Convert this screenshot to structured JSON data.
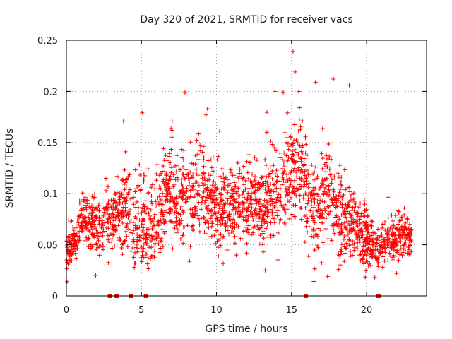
{
  "chart_data": {
    "type": "scatter",
    "title": "Day 320 of 2021, SRMTID for receiver vacs",
    "xlabel": "GPS time / hours",
    "ylabel": "SRMTID / TECUs",
    "xlim": [
      0,
      24
    ],
    "ylim": [
      0,
      0.25
    ],
    "x_ticks": [
      0,
      5,
      10,
      15,
      20
    ],
    "x_tick_labels": [
      "0",
      "5",
      "10",
      "15",
      "20"
    ],
    "y_ticks": [
      0,
      0.05,
      0.1,
      0.15,
      0.2,
      0.25
    ],
    "y_tick_labels": [
      "0",
      "0.05",
      "0.1",
      "0.15",
      "0.2",
      "0.25"
    ],
    "grid": true,
    "marker": "+",
    "color": "#ff0000",
    "baseline_markers_x": [
      2.9,
      3.35,
      4.3,
      5.3,
      15.95,
      20.8
    ],
    "trend": [
      {
        "x": 0.0,
        "y": 0.045
      },
      {
        "x": 0.5,
        "y": 0.05
      },
      {
        "x": 1.0,
        "y": 0.075
      },
      {
        "x": 1.5,
        "y": 0.075
      },
      {
        "x": 2.0,
        "y": 0.065
      },
      {
        "x": 2.5,
        "y": 0.07
      },
      {
        "x": 3.0,
        "y": 0.075
      },
      {
        "x": 3.5,
        "y": 0.085
      },
      {
        "x": 4.0,
        "y": 0.09
      },
      {
        "x": 4.5,
        "y": 0.065
      },
      {
        "x": 5.0,
        "y": 0.075
      },
      {
        "x": 5.5,
        "y": 0.07
      },
      {
        "x": 6.0,
        "y": 0.08
      },
      {
        "x": 6.5,
        "y": 0.095
      },
      {
        "x": 7.0,
        "y": 0.1
      },
      {
        "x": 7.5,
        "y": 0.095
      },
      {
        "x": 8.0,
        "y": 0.095
      },
      {
        "x": 8.5,
        "y": 0.1
      },
      {
        "x": 9.0,
        "y": 0.095
      },
      {
        "x": 9.5,
        "y": 0.1
      },
      {
        "x": 10.0,
        "y": 0.085
      },
      {
        "x": 10.5,
        "y": 0.085
      },
      {
        "x": 11.0,
        "y": 0.09
      },
      {
        "x": 11.5,
        "y": 0.085
      },
      {
        "x": 12.0,
        "y": 0.085
      },
      {
        "x": 12.5,
        "y": 0.09
      },
      {
        "x": 13.0,
        "y": 0.09
      },
      {
        "x": 13.5,
        "y": 0.1
      },
      {
        "x": 14.0,
        "y": 0.1
      },
      {
        "x": 14.5,
        "y": 0.11
      },
      {
        "x": 15.0,
        "y": 0.12
      },
      {
        "x": 15.5,
        "y": 0.13
      },
      {
        "x": 16.0,
        "y": 0.1
      },
      {
        "x": 16.5,
        "y": 0.08
      },
      {
        "x": 17.0,
        "y": 0.085
      },
      {
        "x": 17.5,
        "y": 0.11
      },
      {
        "x": 18.0,
        "y": 0.085
      },
      {
        "x": 18.5,
        "y": 0.075
      },
      {
        "x": 19.0,
        "y": 0.07
      },
      {
        "x": 19.5,
        "y": 0.06
      },
      {
        "x": 20.0,
        "y": 0.055
      },
      {
        "x": 20.5,
        "y": 0.05
      },
      {
        "x": 21.0,
        "y": 0.05
      },
      {
        "x": 21.5,
        "y": 0.055
      },
      {
        "x": 22.0,
        "y": 0.055
      },
      {
        "x": 22.5,
        "y": 0.06
      },
      {
        "x": 23.0,
        "y": 0.055
      }
    ],
    "spread": [
      {
        "x": 0.0,
        "s": 0.012
      },
      {
        "x": 3.0,
        "s": 0.02
      },
      {
        "x": 4.0,
        "s": 0.03
      },
      {
        "x": 6.0,
        "s": 0.028
      },
      {
        "x": 9.5,
        "s": 0.03
      },
      {
        "x": 12.0,
        "s": 0.025
      },
      {
        "x": 14.5,
        "s": 0.03
      },
      {
        "x": 15.5,
        "s": 0.035
      },
      {
        "x": 17.5,
        "s": 0.032
      },
      {
        "x": 19.0,
        "s": 0.025
      },
      {
        "x": 20.5,
        "s": 0.015
      },
      {
        "x": 23.0,
        "s": 0.015
      }
    ],
    "peaks": [
      {
        "x": 15.1,
        "y": 0.239
      },
      {
        "x": 15.25,
        "y": 0.219
      },
      {
        "x": 17.8,
        "y": 0.212
      },
      {
        "x": 16.6,
        "y": 0.209
      },
      {
        "x": 18.85,
        "y": 0.206
      },
      {
        "x": 7.9,
        "y": 0.199
      },
      {
        "x": 13.9,
        "y": 0.2
      },
      {
        "x": 14.45,
        "y": 0.199
      },
      {
        "x": 5.05,
        "y": 0.179
      },
      {
        "x": 9.4,
        "y": 0.183
      },
      {
        "x": 3.8,
        "y": 0.171
      },
      {
        "x": 7.05,
        "y": 0.171
      },
      {
        "x": 0.05,
        "y": 0.014
      },
      {
        "x": 13.25,
        "y": 0.025
      },
      {
        "x": 20.55,
        "y": 0.018
      },
      {
        "x": 1.95,
        "y": 0.02
      },
      {
        "x": 17.4,
        "y": 0.019
      },
      {
        "x": 22.0,
        "y": 0.022
      }
    ],
    "n_points": 2300,
    "t_max": 23.0
  }
}
